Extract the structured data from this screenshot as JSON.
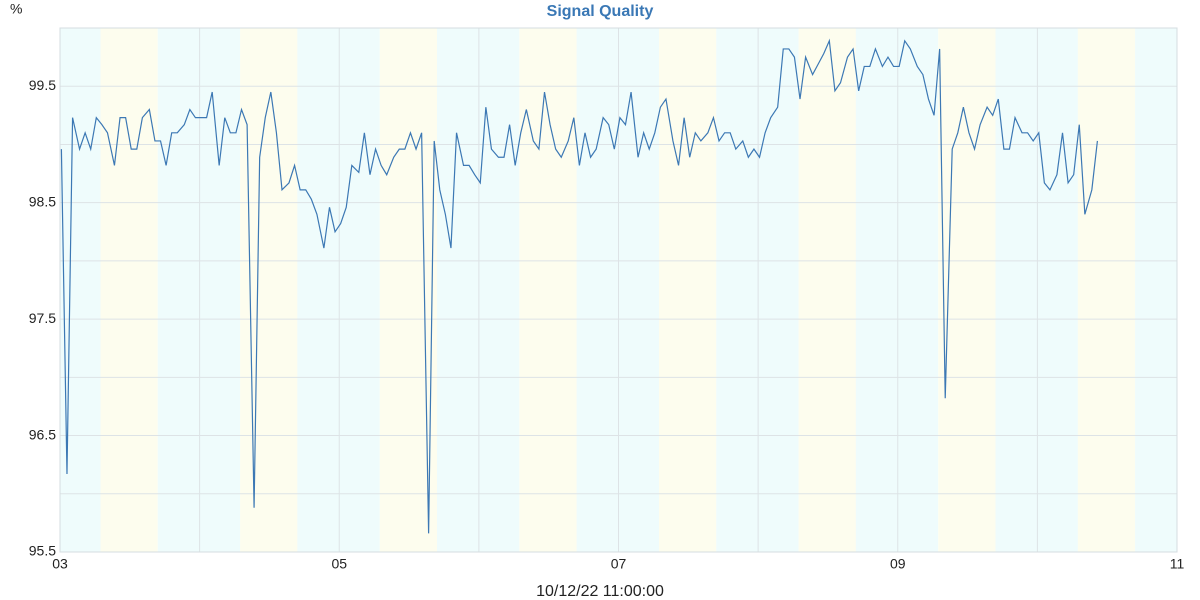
{
  "chart_data": {
    "type": "line",
    "title": "Signal Quality",
    "y_unit": "%",
    "x_label": "10/12/22 11:00:00",
    "color": "#3c78b4",
    "xlim": [
      3,
      11
    ],
    "xticks": [
      {
        "value": 3,
        "label": "03"
      },
      {
        "value": 5,
        "label": "05"
      },
      {
        "value": 7,
        "label": "07"
      },
      {
        "value": 9,
        "label": "09"
      },
      {
        "value": 11,
        "label": "11"
      }
    ],
    "xminor_ticks": [
      4,
      6,
      8,
      10
    ],
    "ylim": [
      95.5,
      100
    ],
    "yticks": [
      95.5,
      96.5,
      97.5,
      98.5,
      99.5
    ],
    "yminor_ticks": [
      96,
      97,
      98,
      99,
      100
    ],
    "grid": true,
    "x": [
      3.01,
      3.05,
      3.09,
      3.14,
      3.18,
      3.22,
      3.26,
      3.3,
      3.34,
      3.39,
      3.43,
      3.47,
      3.51,
      3.55,
      3.59,
      3.64,
      3.68,
      3.72,
      3.76,
      3.8,
      3.84,
      3.89,
      3.93,
      3.97,
      4.01,
      4.05,
      4.09,
      4.14,
      4.18,
      4.22,
      4.26,
      4.3,
      4.34,
      4.39,
      4.43,
      4.47,
      4.51,
      4.55,
      4.59,
      4.64,
      4.68,
      4.72,
      4.76,
      4.8,
      4.84,
      4.89,
      4.93,
      4.97,
      5.01,
      5.05,
      5.09,
      5.14,
      5.18,
      5.22,
      5.26,
      5.3,
      5.34,
      5.39,
      5.43,
      5.47,
      5.51,
      5.55,
      5.59,
      5.64,
      5.68,
      5.72,
      5.76,
      5.8,
      5.84,
      5.89,
      5.93,
      5.97,
      6.01,
      6.05,
      6.09,
      6.14,
      6.18,
      6.22,
      6.26,
      6.3,
      6.34,
      6.39,
      6.43,
      6.47,
      6.51,
      6.55,
      6.59,
      6.64,
      6.68,
      6.72,
      6.76,
      6.8,
      6.84,
      6.89,
      6.93,
      6.97,
      7.01,
      7.05,
      7.09,
      7.14,
      7.18,
      7.22,
      7.26,
      7.3,
      7.34,
      7.39,
      7.43,
      7.47,
      7.51,
      7.55,
      7.59,
      7.64,
      7.68,
      7.72,
      7.76,
      7.8,
      7.84,
      7.89,
      7.93,
      7.97,
      8.01,
      8.05,
      8.09,
      8.14,
      8.18,
      8.22,
      8.26,
      8.3,
      8.34,
      8.39,
      8.43,
      8.47,
      8.51,
      8.55,
      8.59,
      8.64,
      8.68,
      8.72,
      8.76,
      8.8,
      8.84,
      8.89,
      8.93,
      8.97,
      9.01,
      9.05,
      9.09,
      9.14,
      9.18,
      9.22,
      9.26,
      9.3,
      9.34,
      9.39,
      9.43,
      9.47,
      9.51,
      9.55,
      9.59,
      9.64,
      9.68,
      9.72,
      9.76,
      9.8,
      9.84,
      9.89,
      9.93,
      9.97,
      10.01,
      10.05,
      10.09,
      10.14,
      10.18,
      10.22,
      10.26,
      10.3,
      10.34,
      10.39,
      10.43
    ],
    "values": [
      98.96,
      96.17,
      99.23,
      98.96,
      99.1,
      98.96,
      99.23,
      99.17,
      99.1,
      98.82,
      99.23,
      99.23,
      98.96,
      98.96,
      99.23,
      99.3,
      99.03,
      99.03,
      98.82,
      99.1,
      99.1,
      99.17,
      99.3,
      99.23,
      99.23,
      99.23,
      99.45,
      98.82,
      99.23,
      99.1,
      99.1,
      99.3,
      99.17,
      95.88,
      98.89,
      99.23,
      99.45,
      99.1,
      98.61,
      98.67,
      98.82,
      98.61,
      98.61,
      98.53,
      98.4,
      98.11,
      98.46,
      98.25,
      98.32,
      98.46,
      98.82,
      98.76,
      99.1,
      98.74,
      98.96,
      98.82,
      98.74,
      98.89,
      98.96,
      98.96,
      99.1,
      98.96,
      99.1,
      95.66,
      99.03,
      98.61,
      98.4,
      98.11,
      99.1,
      98.82,
      98.82,
      98.74,
      98.67,
      99.32,
      98.96,
      98.89,
      98.89,
      99.17,
      98.82,
      99.1,
      99.3,
      99.03,
      98.96,
      99.45,
      99.17,
      98.96,
      98.89,
      99.03,
      99.23,
      98.82,
      99.1,
      98.89,
      98.96,
      99.23,
      99.17,
      98.96,
      99.23,
      99.17,
      99.45,
      98.89,
      99.1,
      98.96,
      99.1,
      99.32,
      99.39,
      99.03,
      98.82,
      99.23,
      98.89,
      99.1,
      99.03,
      99.1,
      99.23,
      99.03,
      99.1,
      99.1,
      98.96,
      99.03,
      98.89,
      98.96,
      98.89,
      99.1,
      99.23,
      99.32,
      99.82,
      99.82,
      99.75,
      99.39,
      99.75,
      99.6,
      99.69,
      99.78,
      99.89,
      99.46,
      99.53,
      99.75,
      99.82,
      99.46,
      99.67,
      99.67,
      99.82,
      99.67,
      99.75,
      99.67,
      99.67,
      99.89,
      99.82,
      99.67,
      99.6,
      99.39,
      99.25,
      99.82,
      96.82,
      98.96,
      99.1,
      99.32,
      99.1,
      98.96,
      99.17,
      99.32,
      99.25,
      99.39,
      98.96,
      98.96,
      99.23,
      99.1,
      99.1,
      99.03,
      99.1,
      98.67,
      98.61,
      98.74,
      99.1,
      98.67,
      98.74,
      99.17,
      98.4,
      98.61,
      99.03
    ]
  }
}
